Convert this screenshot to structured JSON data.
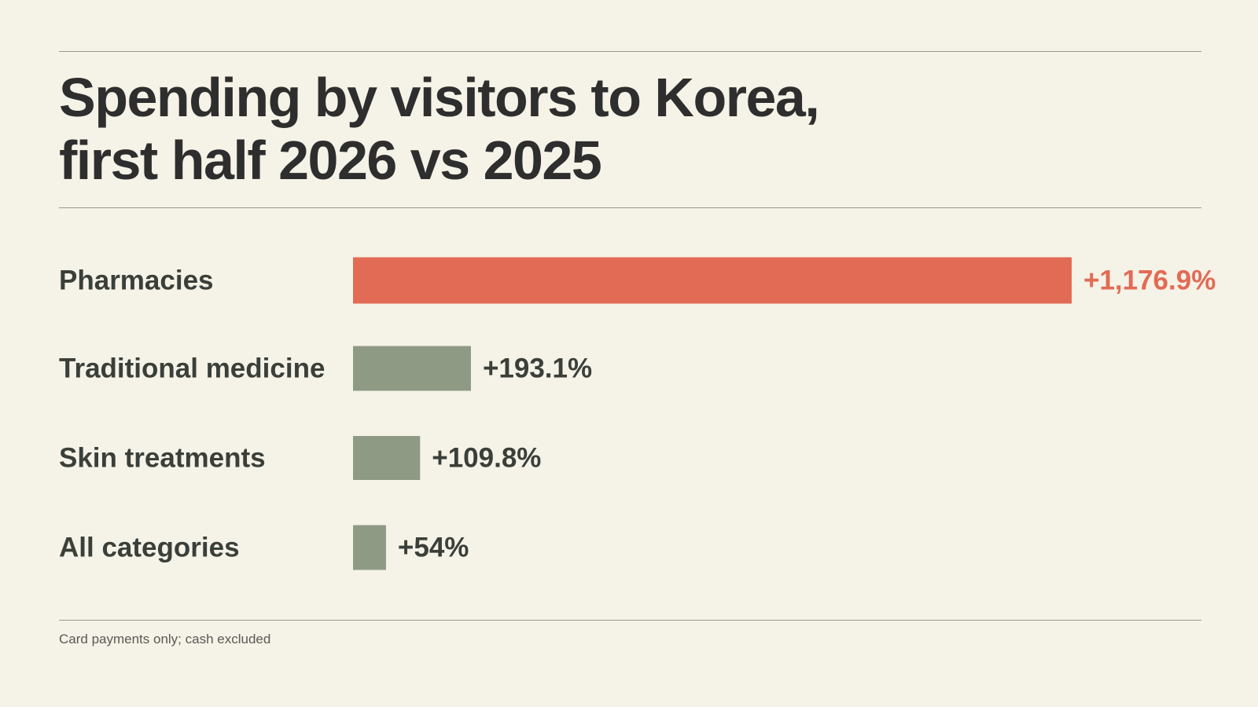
{
  "title": {
    "line1": "Spending by visitors to Korea,",
    "line2": "first half 2026 vs 2025"
  },
  "note": "Card payments only; cash excluded",
  "colors": {
    "highlight": "#e26b55",
    "bar": "#8f9a85",
    "label": "#3a3f39",
    "highlight_text": "#e26b55"
  },
  "chart_data": {
    "type": "bar",
    "orientation": "horizontal",
    "categories": [
      "Pharmacies",
      "Traditional medicine",
      "Skin treatments",
      "All categories"
    ],
    "values": [
      1176.9,
      193.1,
      109.8,
      54
    ],
    "value_labels": [
      "+1,176.9%",
      "+193.1%",
      "+109.8%",
      "+54%"
    ],
    "highlight_index": 0,
    "xlim": [
      0,
      1176.9
    ],
    "grid": false,
    "legend": "none"
  }
}
